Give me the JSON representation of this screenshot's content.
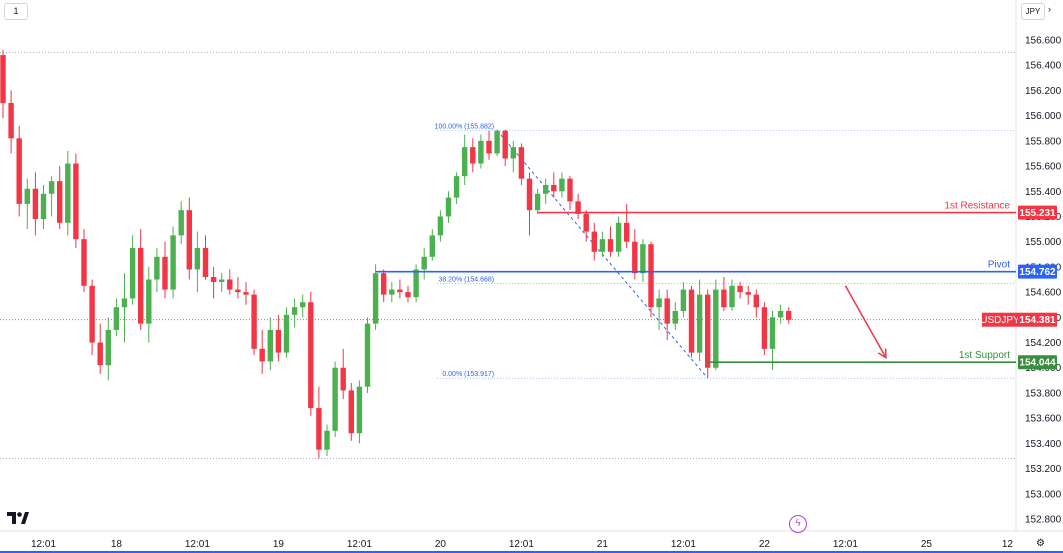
{
  "toolbar": {
    "interval_label": "1",
    "currency_label": "JPY",
    "chevron_icon": "chevron-right-icon"
  },
  "brand": {
    "logo_icon": "tradingview-logo-icon",
    "bolt_icon": "lightning-icon"
  },
  "colors": {
    "bull": "#26a69a",
    "bull_candle": "#4caf50",
    "bear": "#f23645",
    "resistance": "#f23645",
    "pivot": "#2962ff",
    "support": "#388e3c",
    "symbol_tag": "#f23645",
    "fib": "#2962ff",
    "arrow": "#f23645"
  },
  "chart_data": {
    "type": "candlestick",
    "symbol": "USDJPY",
    "ylim": [
      152.8,
      156.6
    ],
    "y_ticks": [
      "156.600",
      "156.400",
      "156.200",
      "156.000",
      "155.800",
      "155.600",
      "155.400",
      "155.200",
      "155.000",
      "154.800",
      "154.600",
      "154.400",
      "154.200",
      "154.000",
      "153.800",
      "153.600",
      "153.400",
      "153.200",
      "153.000",
      "152.800"
    ],
    "x_ticks": [
      {
        "label": "12:01",
        "i": 5
      },
      {
        "label": "18",
        "i": 14
      },
      {
        "label": "12:01",
        "i": 24
      },
      {
        "label": "19",
        "i": 34
      },
      {
        "label": "12:01",
        "i": 44
      },
      {
        "label": "20",
        "i": 54
      },
      {
        "label": "12:01",
        "i": 64
      },
      {
        "label": "21",
        "i": 74
      },
      {
        "label": "12:01",
        "i": 84
      },
      {
        "label": "22",
        "i": 94
      },
      {
        "label": "12:01",
        "i": 104
      },
      {
        "label": "25",
        "i": 114
      },
      {
        "label": "12",
        "i": 124
      }
    ],
    "candles": [
      [
        156.48,
        156.52,
        155.98,
        156.1
      ],
      [
        156.1,
        156.2,
        155.7,
        155.82
      ],
      [
        155.82,
        155.92,
        155.2,
        155.3
      ],
      [
        155.3,
        155.5,
        155.1,
        155.42
      ],
      [
        155.42,
        155.55,
        155.05,
        155.18
      ],
      [
        155.18,
        155.45,
        155.1,
        155.38
      ],
      [
        155.38,
        155.52,
        155.2,
        155.48
      ],
      [
        155.48,
        155.6,
        155.1,
        155.15
      ],
      [
        155.15,
        155.72,
        155.05,
        155.62
      ],
      [
        155.62,
        155.7,
        154.95,
        155.02
      ],
      [
        155.02,
        155.1,
        154.6,
        154.65
      ],
      [
        154.65,
        154.7,
        154.1,
        154.2
      ],
      [
        154.2,
        154.35,
        153.95,
        154.02
      ],
      [
        154.02,
        154.4,
        153.9,
        154.3
      ],
      [
        154.3,
        154.55,
        154.25,
        154.48
      ],
      [
        154.48,
        154.75,
        154.2,
        154.55
      ],
      [
        154.55,
        155.05,
        154.5,
        154.95
      ],
      [
        154.95,
        155.1,
        154.3,
        154.35
      ],
      [
        154.35,
        154.8,
        154.2,
        154.7
      ],
      [
        154.7,
        154.95,
        154.6,
        154.88
      ],
      [
        154.88,
        155.0,
        154.55,
        154.62
      ],
      [
        154.62,
        155.12,
        154.55,
        155.05
      ],
      [
        155.05,
        155.32,
        154.98,
        155.25
      ],
      [
        155.25,
        155.35,
        154.7,
        154.78
      ],
      [
        154.78,
        155.08,
        154.6,
        154.95
      ],
      [
        154.95,
        155.05,
        154.7,
        154.72
      ],
      [
        154.72,
        154.8,
        154.55,
        154.68
      ],
      [
        154.68,
        154.75,
        154.6,
        154.7
      ],
      [
        154.7,
        154.78,
        154.58,
        154.62
      ],
      [
        154.62,
        154.72,
        154.55,
        154.6
      ],
      [
        154.6,
        154.68,
        154.5,
        154.58
      ],
      [
        154.58,
        154.62,
        154.1,
        154.15
      ],
      [
        154.15,
        154.3,
        153.95,
        154.05
      ],
      [
        154.05,
        154.4,
        153.98,
        154.3
      ],
      [
        154.3,
        154.42,
        154.05,
        154.12
      ],
      [
        154.12,
        154.48,
        154.08,
        154.42
      ],
      [
        154.42,
        154.55,
        154.32,
        154.48
      ],
      [
        154.48,
        154.58,
        154.4,
        154.52
      ],
      [
        154.52,
        154.6,
        153.62,
        153.68
      ],
      [
        153.68,
        153.85,
        153.28,
        153.35
      ],
      [
        153.35,
        153.55,
        153.3,
        153.5
      ],
      [
        153.5,
        154.05,
        153.45,
        154.0
      ],
      [
        154.0,
        154.15,
        153.75,
        153.82
      ],
      [
        153.82,
        153.88,
        153.42,
        153.48
      ],
      [
        153.48,
        153.9,
        153.4,
        153.85
      ],
      [
        153.85,
        154.4,
        153.8,
        154.35
      ],
      [
        154.35,
        154.82,
        154.3,
        154.75
      ],
      [
        154.75,
        154.78,
        154.52,
        154.58
      ],
      [
        154.58,
        154.68,
        154.52,
        154.62
      ],
      [
        154.62,
        154.7,
        154.55,
        154.6
      ],
      [
        154.6,
        154.65,
        154.52,
        154.56
      ],
      [
        154.56,
        154.82,
        154.52,
        154.78
      ],
      [
        154.78,
        154.95,
        154.7,
        154.88
      ],
      [
        154.88,
        155.1,
        154.85,
        155.05
      ],
      [
        155.05,
        155.25,
        155.0,
        155.2
      ],
      [
        155.2,
        155.4,
        155.15,
        155.35
      ],
      [
        155.35,
        155.55,
        155.3,
        155.52
      ],
      [
        155.52,
        155.85,
        155.45,
        155.75
      ],
      [
        155.75,
        155.82,
        155.55,
        155.62
      ],
      [
        155.62,
        155.85,
        155.58,
        155.8
      ],
      [
        155.8,
        155.88,
        155.65,
        155.7
      ],
      [
        155.7,
        155.89,
        155.68,
        155.88
      ],
      [
        155.88,
        155.89,
        155.6,
        155.66
      ],
      [
        155.66,
        155.8,
        155.55,
        155.75
      ],
      [
        155.75,
        155.78,
        155.45,
        155.5
      ],
      [
        155.5,
        155.55,
        155.05,
        155.25
      ],
      [
        155.25,
        155.42,
        155.22,
        155.38
      ],
      [
        155.38,
        155.5,
        155.3,
        155.45
      ],
      [
        155.45,
        155.55,
        155.35,
        155.4
      ],
      [
        155.4,
        155.55,
        155.35,
        155.5
      ],
      [
        155.5,
        155.52,
        155.25,
        155.32
      ],
      [
        155.32,
        155.38,
        155.18,
        155.22
      ],
      [
        155.22,
        155.25,
        155.0,
        155.08
      ],
      [
        155.08,
        155.15,
        154.85,
        154.92
      ],
      [
        154.92,
        155.08,
        154.88,
        155.02
      ],
      [
        155.02,
        155.12,
        154.88,
        154.92
      ],
      [
        154.92,
        155.2,
        154.88,
        155.15
      ],
      [
        155.15,
        155.3,
        154.95,
        155.0
      ],
      [
        155.0,
        155.1,
        154.7,
        154.75
      ],
      [
        154.75,
        155.02,
        154.68,
        154.98
      ],
      [
        154.98,
        155.0,
        154.4,
        154.48
      ],
      [
        154.48,
        154.62,
        154.3,
        154.55
      ],
      [
        154.55,
        154.62,
        154.22,
        154.35
      ],
      [
        154.35,
        154.52,
        154.3,
        154.45
      ],
      [
        154.45,
        154.68,
        154.4,
        154.62
      ],
      [
        154.62,
        154.65,
        154.08,
        154.12
      ],
      [
        154.12,
        154.7,
        154.05,
        154.58
      ],
      [
        154.58,
        154.62,
        153.92,
        154.0
      ],
      [
        154.0,
        154.7,
        153.98,
        154.62
      ],
      [
        154.62,
        154.72,
        154.45,
        154.48
      ],
      [
        154.48,
        154.7,
        154.45,
        154.65
      ],
      [
        154.65,
        154.68,
        154.55,
        154.6
      ],
      [
        154.6,
        154.65,
        154.5,
        154.58
      ],
      [
        154.58,
        154.62,
        154.4,
        154.48
      ],
      [
        154.48,
        154.52,
        154.1,
        154.15
      ],
      [
        154.15,
        154.45,
        153.98,
        154.4
      ],
      [
        154.4,
        154.5,
        154.35,
        154.45
      ],
      [
        154.45,
        154.48,
        154.35,
        154.38
      ]
    ],
    "last_price": 154.381,
    "dotted_levels": [
      156.5,
      153.28
    ],
    "levels": [
      {
        "name": "1st Resistance",
        "price": 155.231,
        "price_label": "155.231",
        "color": "#f23645",
        "start_i": 66
      },
      {
        "name": "Pivot",
        "price": 154.762,
        "price_label": "154.762",
        "color": "#2962ff",
        "start_i": 46
      },
      {
        "name": "1st Support",
        "price": 154.044,
        "price_label": "154.044",
        "color": "#388e3c",
        "start_i": 87
      }
    ],
    "symbol_tag": {
      "symbol": "USDJPY",
      "price_label": "154.381"
    },
    "fib": {
      "from_i": 61,
      "to_i": 87,
      "levels": [
        {
          "label": "100.00% (155.882)",
          "price": 155.882
        },
        {
          "label": "38.20% (154.668)",
          "price": 154.668
        },
        {
          "label": "0.00% (153.917)",
          "price": 153.917
        }
      ],
      "trend_from_price": 155.882,
      "trend_to_price": 153.917
    },
    "projection_arrow": {
      "from_i": 104,
      "from_price": 154.65,
      "to_i": 109,
      "to_price": 154.08
    }
  }
}
